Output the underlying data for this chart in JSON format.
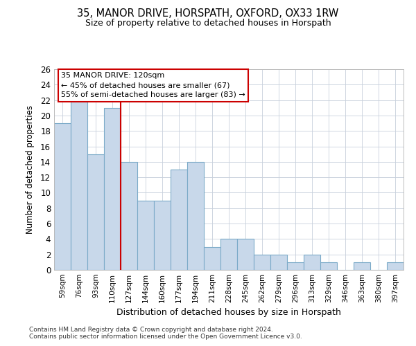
{
  "title_line1": "35, MANOR DRIVE, HORSPATH, OXFORD, OX33 1RW",
  "title_line2": "Size of property relative to detached houses in Horspath",
  "xlabel": "Distribution of detached houses by size in Horspath",
  "ylabel": "Number of detached properties",
  "bar_values": [
    19,
    22,
    15,
    21,
    14,
    9,
    9,
    13,
    14,
    3,
    4,
    4,
    2,
    2,
    1,
    2,
    1,
    0,
    1,
    0,
    1
  ],
  "bar_labels": [
    "59sqm",
    "76sqm",
    "93sqm",
    "110sqm",
    "127sqm",
    "144sqm",
    "160sqm",
    "177sqm",
    "194sqm",
    "211sqm",
    "228sqm",
    "245sqm",
    "262sqm",
    "279sqm",
    "296sqm",
    "313sqm",
    "329sqm",
    "346sqm",
    "363sqm",
    "380sqm",
    "397sqm"
  ],
  "bar_color": "#c8d8ea",
  "bar_edge_color": "#7baac8",
  "background_color": "#ffffff",
  "grid_color": "#c8d0dc",
  "annotation_text": "35 MANOR DRIVE: 120sqm\n← 45% of detached houses are smaller (67)\n55% of semi-detached houses are larger (83) →",
  "annotation_box_color": "#ffffff",
  "annotation_box_edge_color": "#cc0000",
  "red_line_x": 3.5,
  "ylim": [
    0,
    26
  ],
  "yticks": [
    0,
    2,
    4,
    6,
    8,
    10,
    12,
    14,
    16,
    18,
    20,
    22,
    24,
    26
  ],
  "footnote1": "Contains HM Land Registry data © Crown copyright and database right 2024.",
  "footnote2": "Contains public sector information licensed under the Open Government Licence v3.0."
}
